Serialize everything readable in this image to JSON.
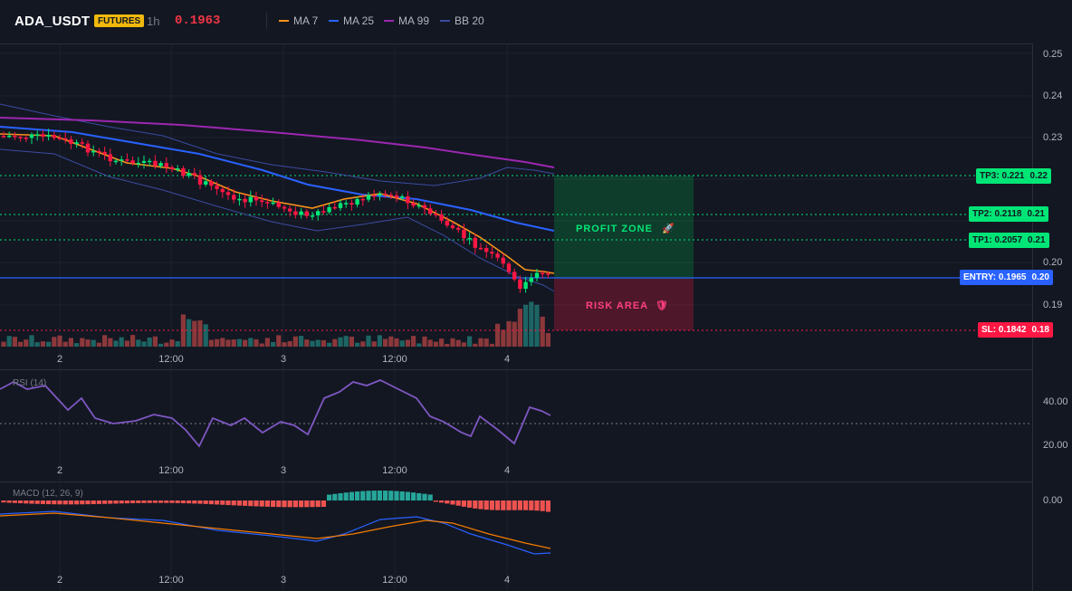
{
  "header": {
    "symbol": "ADA_USDT",
    "badge": "FUTURES",
    "timeframe": "1h",
    "price": "0.1963"
  },
  "legend": [
    {
      "label": "MA 7",
      "color": "#f7931a"
    },
    {
      "label": "MA 25",
      "color": "#2962ff"
    },
    {
      "label": "MA 99",
      "color": "#9c27b0"
    },
    {
      "label": "BB 20",
      "color": "#3b4ba0"
    }
  ],
  "price_axis": [
    "0.25",
    "0.24",
    "0.23",
    "0.22",
    "0.21",
    "0.20",
    "0.19",
    "0.18"
  ],
  "time_axis": [
    "2",
    "12:00",
    "3",
    "12:00",
    "4"
  ],
  "levels": {
    "tp3": "TP3: 0.221",
    "tp3_axis": "0.22",
    "tp2": "TP2: 0.2118",
    "tp2_axis": "0.21",
    "tp1": "TP1: 0.2057",
    "tp1_axis": "0.21",
    "entry": "ENTRY: 0.1965",
    "entry_axis": "0.20",
    "sl": "SL: 0.1842",
    "sl_axis": "0.18"
  },
  "zones": {
    "profit": "PROFIT ZONE",
    "profit_icon": "rocket-icon",
    "risk": "RISK AREA",
    "risk_icon": "shield-icon"
  },
  "rsi": {
    "label": "RSI (14)",
    "axis": [
      "40.00",
      "20.00"
    ]
  },
  "macd": {
    "label": "MACD (12, 26, 9)",
    "axis": [
      "0.00"
    ]
  },
  "colors": {
    "up": "#26a69a",
    "down": "#ef5350",
    "up_bright": "#00e676",
    "down_bright": "#ff1744",
    "profit": "#00c853",
    "risk": "#ff1744",
    "entry": "#2962ff",
    "rsi": "#7e57c2"
  }
}
